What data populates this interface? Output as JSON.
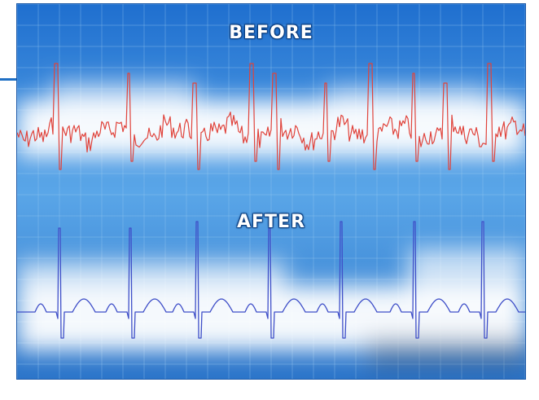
{
  "labels": {
    "before": "BEFORE",
    "after": "AFTER"
  },
  "colors": {
    "background_top": "#2d7fd6",
    "background_mid": "#5aa6e8",
    "glow": "#ffffff",
    "grid": "#8fc2f0",
    "before_trace": "#e0433b",
    "after_trace": "#3f4fc8",
    "label_text": "#ffffff",
    "frame_border": "#1d5aa8"
  }
}
